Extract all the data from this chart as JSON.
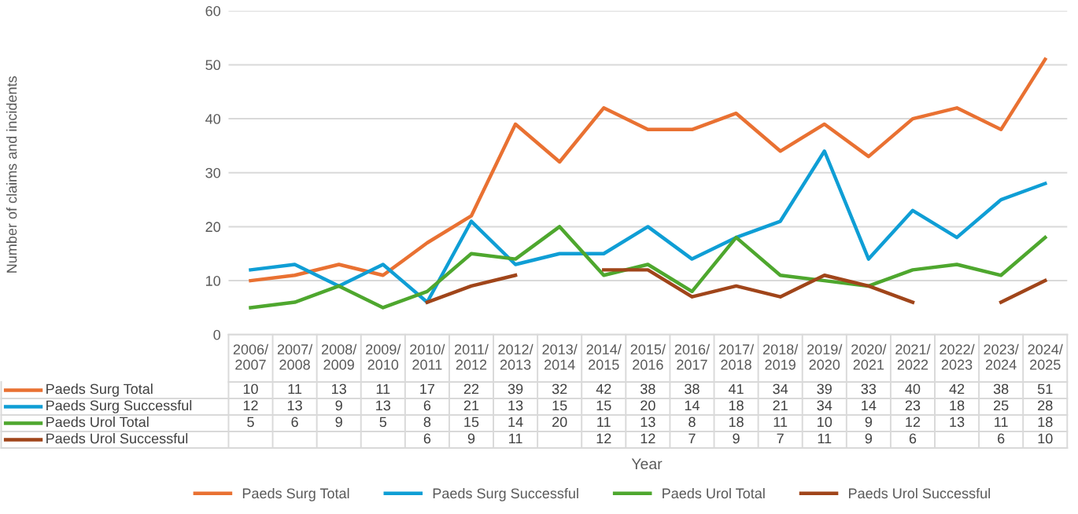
{
  "chart_data": {
    "type": "line",
    "categories": [
      "2006/\n2007",
      "2007/\n2008",
      "2008/\n2009",
      "2009/\n2010",
      "2010/\n2011",
      "2011/\n2012",
      "2012/\n2013",
      "2013/\n2014",
      "2014/\n2015",
      "2015/\n2016",
      "2016/\n2017",
      "2017/\n2018",
      "2018/\n2019",
      "2019/\n2020",
      "2020/\n2021",
      "2021/\n2022",
      "2022/\n2023",
      "2023/\n2024",
      "2024/\n2025"
    ],
    "series": [
      {
        "name": "Paeds Surg Total",
        "color": "#e97132",
        "values": [
          10,
          11,
          13,
          11,
          17,
          22,
          39,
          32,
          42,
          38,
          38,
          41,
          34,
          39,
          33,
          40,
          42,
          38,
          51
        ]
      },
      {
        "name": "Paeds Surg Successful",
        "color": "#0f9ed5",
        "values": [
          12,
          13,
          9,
          13,
          6,
          21,
          13,
          15,
          15,
          20,
          14,
          18,
          21,
          34,
          14,
          23,
          18,
          25,
          28
        ]
      },
      {
        "name": "Paeds Urol Total",
        "color": "#4ea72e",
        "values": [
          5,
          6,
          9,
          5,
          8,
          15,
          14,
          20,
          11,
          13,
          8,
          18,
          11,
          10,
          9,
          12,
          13,
          11,
          18
        ]
      },
      {
        "name": "Paeds Urol Successful",
        "color": "#a0451a",
        "values": [
          null,
          null,
          null,
          null,
          6,
          9,
          11,
          null,
          12,
          12,
          7,
          9,
          7,
          11,
          9,
          6,
          null,
          6,
          10
        ]
      }
    ],
    "annotations": [
      "Number of claims and incidents",
      "Year"
    ],
    "ylim": [
      0,
      60
    ],
    "yticks": [
      0,
      10,
      20,
      30,
      40,
      50,
      60
    ],
    "grid": "y",
    "legend": "bottom",
    "data_labels": true,
    "marker": "none",
    "line_style": "solid"
  }
}
